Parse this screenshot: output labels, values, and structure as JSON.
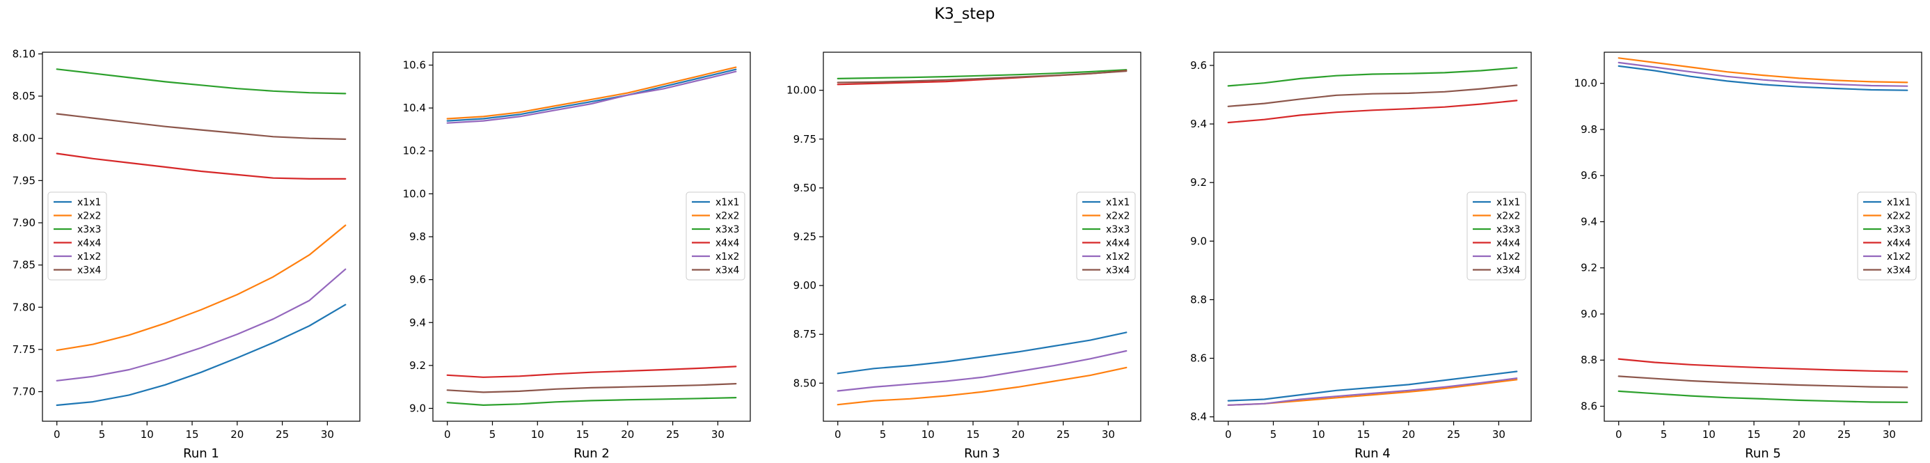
{
  "figure": {
    "title": "K3_step"
  },
  "colors": {
    "x1x1": "#1f77b4",
    "x2x2": "#ff7f0e",
    "x3x3": "#2ca02c",
    "x4x4": "#d62728",
    "x1x2": "#9467bd",
    "x3x4": "#8c564b"
  },
  "chart_data": [
    {
      "type": "line",
      "title": "",
      "xlabel": "Run 1",
      "ylabel": "",
      "xlim": [
        -1.6,
        33.6
      ],
      "ylim": [
        7.665,
        8.102
      ],
      "xticks": [
        0,
        5,
        10,
        15,
        20,
        25,
        30
      ],
      "yticks": [
        7.7,
        7.75,
        7.8,
        7.85,
        7.9,
        7.95,
        8.0,
        8.05,
        8.1
      ],
      "ytick_labels": [
        "7.70",
        "7.75",
        "7.80",
        "7.85",
        "7.90",
        "7.95",
        "8.00",
        "8.05",
        "8.10"
      ],
      "legend": "center-left",
      "grid": false,
      "x": [
        0,
        4,
        8,
        12,
        16,
        20,
        24,
        28,
        32
      ],
      "series": [
        {
          "name": "x1x1",
          "values": [
            7.684,
            7.688,
            7.696,
            7.708,
            7.723,
            7.74,
            7.758,
            7.778,
            7.803
          ]
        },
        {
          "name": "x2x2",
          "values": [
            7.749,
            7.756,
            7.767,
            7.781,
            7.797,
            7.815,
            7.836,
            7.862,
            7.897
          ]
        },
        {
          "name": "x3x3",
          "values": [
            8.082,
            8.077,
            8.072,
            8.067,
            8.063,
            8.059,
            8.056,
            8.054,
            8.053
          ]
        },
        {
          "name": "x4x4",
          "values": [
            7.982,
            7.976,
            7.971,
            7.966,
            7.961,
            7.957,
            7.953,
            7.952,
            7.952
          ]
        },
        {
          "name": "x1x2",
          "values": [
            7.713,
            7.718,
            7.726,
            7.738,
            7.752,
            7.768,
            7.786,
            7.808,
            7.845
          ]
        },
        {
          "name": "x3x4",
          "values": [
            8.029,
            8.024,
            8.019,
            8.014,
            8.01,
            8.006,
            8.002,
            8.0,
            7.999
          ]
        }
      ]
    },
    {
      "type": "line",
      "title": "",
      "xlabel": "Run 2",
      "ylabel": "",
      "xlim": [
        -1.6,
        33.6
      ],
      "ylim": [
        8.94,
        10.66
      ],
      "xticks": [
        0,
        5,
        10,
        15,
        20,
        25,
        30
      ],
      "yticks": [
        9.0,
        9.2,
        9.4,
        9.6,
        9.8,
        10.0,
        10.2,
        10.4,
        10.6
      ],
      "ytick_labels": [
        "9.0",
        "9.2",
        "9.4",
        "9.6",
        "9.8",
        "10.0",
        "10.2",
        "10.4",
        "10.6"
      ],
      "legend": "center-right",
      "grid": false,
      "x": [
        0,
        4,
        8,
        12,
        16,
        20,
        24,
        28,
        32
      ],
      "series": [
        {
          "name": "x1x1",
          "values": [
            10.34,
            10.35,
            10.37,
            10.4,
            10.43,
            10.46,
            10.5,
            10.54,
            10.58
          ]
        },
        {
          "name": "x2x2",
          "values": [
            10.35,
            10.36,
            10.38,
            10.41,
            10.44,
            10.47,
            10.51,
            10.55,
            10.59
          ]
        },
        {
          "name": "x3x3",
          "values": [
            9.027,
            9.015,
            9.02,
            9.03,
            9.036,
            9.04,
            9.043,
            9.046,
            9.05
          ]
        },
        {
          "name": "x4x4",
          "values": [
            9.155,
            9.145,
            9.15,
            9.16,
            9.168,
            9.174,
            9.18,
            9.187,
            9.195
          ]
        },
        {
          "name": "x1x2",
          "values": [
            10.33,
            10.34,
            10.36,
            10.39,
            10.42,
            10.46,
            10.49,
            10.53,
            10.57
          ]
        },
        {
          "name": "x3x4",
          "values": [
            9.085,
            9.075,
            9.08,
            9.09,
            9.096,
            9.1,
            9.104,
            9.108,
            9.115
          ]
        }
      ]
    },
    {
      "type": "line",
      "title": "",
      "xlabel": "Run 3",
      "ylabel": "",
      "xlim": [
        -1.6,
        33.6
      ],
      "ylim": [
        8.305,
        10.195
      ],
      "xticks": [
        0,
        5,
        10,
        15,
        20,
        25,
        30
      ],
      "yticks": [
        8.5,
        8.75,
        9.0,
        9.25,
        9.5,
        9.75,
        10.0
      ],
      "ytick_labels": [
        "8.50",
        "8.75",
        "9.00",
        "9.25",
        "9.50",
        "9.75",
        "10.00"
      ],
      "legend": "center-right",
      "grid": false,
      "x": [
        0,
        4,
        8,
        12,
        16,
        20,
        24,
        28,
        32
      ],
      "series": [
        {
          "name": "x1x1",
          "values": [
            8.55,
            8.575,
            8.59,
            8.61,
            8.635,
            8.66,
            8.69,
            8.72,
            8.76
          ]
        },
        {
          "name": "x2x2",
          "values": [
            8.39,
            8.41,
            8.42,
            8.435,
            8.455,
            8.48,
            8.51,
            8.54,
            8.58
          ]
        },
        {
          "name": "x3x3",
          "values": [
            10.06,
            10.063,
            10.066,
            10.07,
            10.075,
            10.08,
            10.087,
            10.095,
            10.105
          ]
        },
        {
          "name": "x4x4",
          "values": [
            10.03,
            10.035,
            10.04,
            10.045,
            10.055,
            10.065,
            10.075,
            10.085,
            10.1
          ]
        },
        {
          "name": "x1x2",
          "values": [
            8.46,
            8.48,
            8.495,
            8.51,
            8.53,
            8.56,
            8.59,
            8.625,
            8.665
          ]
        },
        {
          "name": "x3x4",
          "values": [
            10.04,
            10.042,
            10.047,
            10.053,
            10.06,
            10.068,
            10.076,
            10.086,
            10.098
          ]
        }
      ]
    },
    {
      "type": "line",
      "title": "",
      "xlabel": "Run 4",
      "ylabel": "",
      "xlim": [
        -1.6,
        33.6
      ],
      "ylim": [
        8.385,
        9.645
      ],
      "xticks": [
        0,
        5,
        10,
        15,
        20,
        25,
        30
      ],
      "yticks": [
        8.4,
        8.6,
        8.8,
        9.0,
        9.2,
        9.4,
        9.6
      ],
      "ytick_labels": [
        "8.4",
        "8.6",
        "8.8",
        "9.0",
        "9.2",
        "9.4",
        "9.6"
      ],
      "legend": "center-right",
      "grid": false,
      "x": [
        0,
        4,
        8,
        12,
        16,
        20,
        24,
        28,
        32
      ],
      "series": [
        {
          "name": "x1x1",
          "values": [
            8.455,
            8.46,
            8.475,
            8.49,
            8.5,
            8.51,
            8.525,
            8.54,
            8.555
          ]
        },
        {
          "name": "x2x2",
          "values": [
            8.44,
            8.445,
            8.455,
            8.465,
            8.475,
            8.485,
            8.497,
            8.512,
            8.527
          ]
        },
        {
          "name": "x3x3",
          "values": [
            9.53,
            9.54,
            9.555,
            9.565,
            9.57,
            9.572,
            9.575,
            9.582,
            9.592
          ]
        },
        {
          "name": "x4x4",
          "values": [
            9.405,
            9.415,
            9.43,
            9.44,
            9.447,
            9.452,
            9.458,
            9.468,
            9.48
          ]
        },
        {
          "name": "x1x2",
          "values": [
            8.44,
            8.445,
            8.46,
            8.47,
            8.48,
            8.49,
            8.502,
            8.516,
            8.532
          ]
        },
        {
          "name": "x3x4",
          "values": [
            9.46,
            9.47,
            9.485,
            9.498,
            9.503,
            9.505,
            9.51,
            9.52,
            9.532
          ]
        }
      ]
    },
    {
      "type": "line",
      "title": "",
      "xlabel": "Run 5",
      "ylabel": "",
      "xlim": [
        -1.6,
        33.6
      ],
      "ylim": [
        8.535,
        10.135
      ],
      "xticks": [
        0,
        5,
        10,
        15,
        20,
        25,
        30
      ],
      "yticks": [
        8.6,
        8.8,
        9.0,
        9.2,
        9.4,
        9.6,
        9.8,
        10.0
      ],
      "ytick_labels": [
        "8.6",
        "8.8",
        "9.0",
        "9.2",
        "9.4",
        "9.6",
        "9.8",
        "10.0"
      ],
      "legend": "center-right",
      "grid": false,
      "x": [
        0,
        4,
        8,
        12,
        16,
        20,
        24,
        28,
        32
      ],
      "series": [
        {
          "name": "x1x1",
          "values": [
            10.075,
            10.055,
            10.03,
            10.01,
            9.995,
            9.985,
            9.978,
            9.972,
            9.97
          ]
        },
        {
          "name": "x2x2",
          "values": [
            10.11,
            10.09,
            10.07,
            10.05,
            10.035,
            10.022,
            10.013,
            10.007,
            10.004
          ]
        },
        {
          "name": "x3x3",
          "values": [
            8.665,
            8.655,
            8.645,
            8.637,
            8.632,
            8.626,
            8.622,
            8.618,
            8.617
          ]
        },
        {
          "name": "x4x4",
          "values": [
            8.805,
            8.79,
            8.78,
            8.773,
            8.767,
            8.762,
            8.757,
            8.753,
            8.75
          ]
        },
        {
          "name": "x1x2",
          "values": [
            10.09,
            10.07,
            10.05,
            10.03,
            10.015,
            10.004,
            9.996,
            9.99,
            9.988
          ]
        },
        {
          "name": "x3x4",
          "values": [
            8.73,
            8.72,
            8.71,
            8.703,
            8.697,
            8.692,
            8.688,
            8.684,
            8.682
          ]
        }
      ]
    }
  ]
}
